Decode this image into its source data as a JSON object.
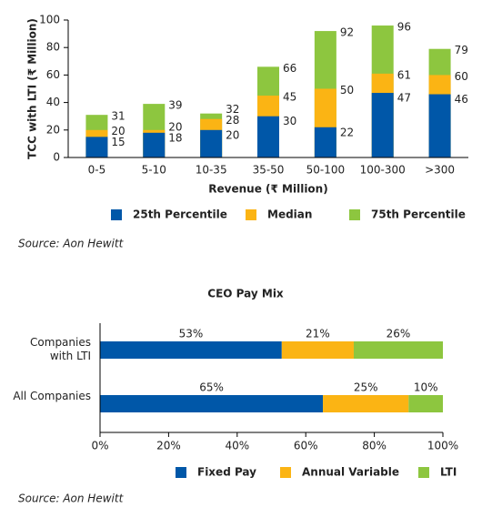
{
  "chart_data": [
    {
      "type": "overlap-bar",
      "xlabel": "Revenue (₹ Million)",
      "ylabel": "TCC with LTI (₹ Million)",
      "categories": [
        "0-5",
        "5-10",
        "10-35",
        "35-50",
        "50-100",
        "100-300",
        ">300"
      ],
      "series": [
        {
          "name": "25th Percentile",
          "color": "#0057a8",
          "values": [
            15,
            18,
            20,
            30,
            22,
            47,
            46
          ]
        },
        {
          "name": "Median",
          "color": "#fbb414",
          "values": [
            20,
            20,
            28,
            45,
            50,
            61,
            60
          ]
        },
        {
          "name": "75th Percentile",
          "color": "#8dc63f",
          "values": [
            31,
            39,
            32,
            66,
            92,
            96,
            79
          ]
        }
      ],
      "ylim": [
        0,
        100
      ],
      "yticks": [
        0,
        20,
        40,
        60,
        80,
        100
      ],
      "legend": "bottom",
      "source": "Source: Aon Hewitt"
    },
    {
      "type": "stacked-hbar",
      "title": "CEO Pay Mix",
      "categories": [
        "Companies with LTI",
        "All Companies"
      ],
      "series": [
        {
          "name": "Fixed Pay",
          "color": "#0057a8",
          "values": [
            53,
            65
          ],
          "value_labels": [
            "53%",
            "65%"
          ]
        },
        {
          "name": "Annual Variable",
          "color": "#fbb414",
          "values": [
            21,
            25
          ],
          "value_labels": [
            "21%",
            "25%"
          ]
        },
        {
          "name": "LTI",
          "color": "#8dc63f",
          "values": [
            26,
            10
          ],
          "value_labels": [
            "26%",
            "10%"
          ]
        }
      ],
      "xlim": [
        0,
        100
      ],
      "xticks": [
        {
          "value": 0,
          "label": "0%"
        },
        {
          "value": 20,
          "label": "20%"
        },
        {
          "value": 40,
          "label": "40%"
        },
        {
          "value": 60,
          "label": "60%"
        },
        {
          "value": 80,
          "label": "80%"
        },
        {
          "value": 100,
          "label": "100%"
        }
      ],
      "legend": "bottom",
      "source": "Source: Aon Hewitt"
    }
  ]
}
